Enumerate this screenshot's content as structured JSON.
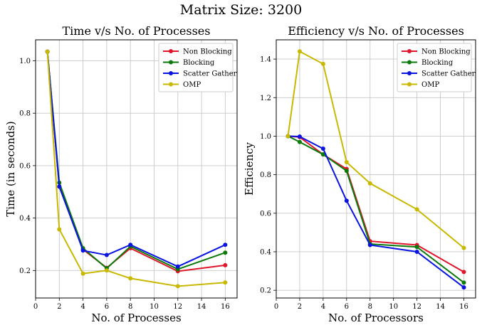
{
  "figure": {
    "suptitle": "Matrix Size: 3200"
  },
  "colors": {
    "non_blocking": "#e0162b",
    "blocking": "#0a7a0a",
    "scatter_gather": "#0a14e0",
    "omp": "#c9b800",
    "grid": "#c8c8c8"
  },
  "chart_data": [
    {
      "type": "line",
      "title": "Time v/s No. of Processes",
      "xlabel": "No. of Processes",
      "ylabel": "Time (in seconds)",
      "xlim": [
        0,
        17
      ],
      "ylim": [
        0.095,
        1.08
      ],
      "xticks": [
        0,
        2,
        4,
        6,
        8,
        10,
        12,
        14,
        16
      ],
      "yticks": [
        0.2,
        0.4,
        0.6,
        0.8,
        1.0
      ],
      "grid": true,
      "legend_position": "top-right",
      "x": [
        1,
        2,
        4,
        6,
        8,
        12,
        16
      ],
      "series": [
        {
          "name": "Non Blocking",
          "color_key": "non_blocking",
          "values": [
            1.035,
            0.52,
            0.28,
            0.21,
            0.285,
            0.197,
            0.22
          ]
        },
        {
          "name": "Blocking",
          "color_key": "blocking",
          "values": [
            1.035,
            0.535,
            0.285,
            0.208,
            0.292,
            0.205,
            0.268
          ]
        },
        {
          "name": "Scatter Gather",
          "color_key": "scatter_gather",
          "values": [
            1.035,
            0.52,
            0.276,
            0.259,
            0.298,
            0.215,
            0.298
          ]
        },
        {
          "name": "OMP",
          "color_key": "omp",
          "values": [
            1.035,
            0.357,
            0.188,
            0.2,
            0.17,
            0.14,
            0.154
          ]
        }
      ]
    },
    {
      "type": "line",
      "title": "Efficiency v/s No. of Processes",
      "xlabel": "No. of Processors",
      "ylabel": "Efficiency",
      "xlim": [
        0,
        17
      ],
      "ylim": [
        0.16,
        1.5
      ],
      "xticks": [
        0,
        2,
        4,
        6,
        8,
        10,
        12,
        14,
        16
      ],
      "yticks": [
        0.2,
        0.4,
        0.6,
        0.8,
        1.0,
        1.2,
        1.4
      ],
      "grid": true,
      "legend_position": "top-right",
      "x": [
        1,
        2,
        4,
        6,
        8,
        12,
        16
      ],
      "series": [
        {
          "name": "Non Blocking",
          "color_key": "non_blocking",
          "values": [
            1.0,
            0.995,
            0.905,
            0.83,
            0.455,
            0.435,
            0.295
          ]
        },
        {
          "name": "Blocking",
          "color_key": "blocking",
          "values": [
            1.0,
            0.97,
            0.905,
            0.82,
            0.44,
            0.425,
            0.24
          ]
        },
        {
          "name": "Scatter Gather",
          "color_key": "scatter_gather",
          "values": [
            1.0,
            0.998,
            0.935,
            0.665,
            0.435,
            0.4,
            0.215
          ]
        },
        {
          "name": "OMP",
          "color_key": "omp",
          "values": [
            1.0,
            1.44,
            1.375,
            0.865,
            0.755,
            0.62,
            0.42
          ]
        }
      ]
    }
  ]
}
